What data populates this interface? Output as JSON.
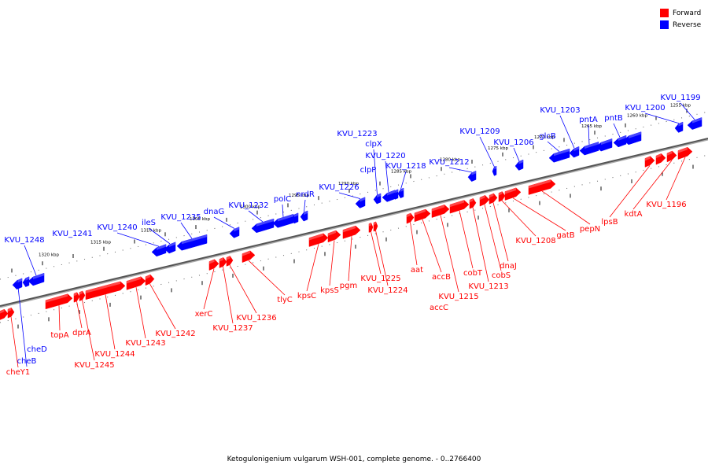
{
  "legend": {
    "forward_label": "Forward",
    "reverse_label": "Reverse",
    "forward_color": "#ff0000",
    "reverse_color": "#0000ff"
  },
  "caption": "Ketogulonigenium vulgarum WSH-001, complete genome. - 0..2766400",
  "axis": {
    "color": "#888888",
    "ticks": [
      {
        "label": "1255 kbp",
        "bp": 1255000
      },
      {
        "label": "1260 kbp",
        "bp": 1260000
      },
      {
        "label": "1265 kbp",
        "bp": 1265000
      },
      {
        "label": "1270 kbp",
        "bp": 1270000
      },
      {
        "label": "1275 kbp",
        "bp": 1275000
      },
      {
        "label": "1280 kbp",
        "bp": 1280000
      },
      {
        "label": "1285 kbp",
        "bp": 1285000
      },
      {
        "label": "1290 kbp",
        "bp": 1290000
      },
      {
        "label": "1295 kbp",
        "bp": 1295000
      },
      {
        "label": "1300 kbp",
        "bp": 1300000
      },
      {
        "label": "1305 kbp",
        "bp": 1305000
      },
      {
        "label": "1310 kbp",
        "bp": 1310000
      },
      {
        "label": "1315 kbp",
        "bp": 1315000
      },
      {
        "label": "1320 kbp",
        "bp": 1320000
      }
    ]
  },
  "genes": [
    {
      "name": "KVU_1199",
      "strand": "reverse"
    },
    {
      "name": "KVU_1200",
      "strand": "reverse"
    },
    {
      "name": "pntB",
      "strand": "reverse"
    },
    {
      "name": "pntA",
      "strand": "reverse"
    },
    {
      "name": "KVU_1203",
      "strand": "reverse"
    },
    {
      "name": "glcB",
      "strand": "reverse"
    },
    {
      "name": "KVU_1206",
      "strand": "reverse"
    },
    {
      "name": "KVU_1209",
      "strand": "reverse"
    },
    {
      "name": "KVU_1212",
      "strand": "reverse"
    },
    {
      "name": "KVU_1218",
      "strand": "reverse"
    },
    {
      "name": "KVU_1220",
      "strand": "reverse"
    },
    {
      "name": "clpX",
      "strand": "reverse"
    },
    {
      "name": "KVU_1223",
      "strand": "reverse"
    },
    {
      "name": "clpP",
      "strand": "reverse"
    },
    {
      "name": "KVU_1226",
      "strand": "reverse"
    },
    {
      "name": "nrdR",
      "strand": "reverse"
    },
    {
      "name": "polC",
      "strand": "reverse"
    },
    {
      "name": "KVU_1232",
      "strand": "reverse"
    },
    {
      "name": "dnaG",
      "strand": "reverse"
    },
    {
      "name": "KVU_1235",
      "strand": "reverse"
    },
    {
      "name": "ileS",
      "strand": "reverse"
    },
    {
      "name": "KVU_1240",
      "strand": "reverse"
    },
    {
      "name": "KVU_1241",
      "strand": "reverse"
    },
    {
      "name": "KVU_1248",
      "strand": "reverse"
    },
    {
      "name": "cheD",
      "strand": "reverse"
    },
    {
      "name": "cheB",
      "strand": "reverse"
    },
    {
      "name": "KVU_1196",
      "strand": "forward"
    },
    {
      "name": "kdtA",
      "strand": "forward"
    },
    {
      "name": "lpsB",
      "strand": "forward"
    },
    {
      "name": "pepN",
      "strand": "forward"
    },
    {
      "name": "gatB",
      "strand": "forward"
    },
    {
      "name": "KVU_1208",
      "strand": "forward"
    },
    {
      "name": "dnaJ",
      "strand": "forward"
    },
    {
      "name": "cobS",
      "strand": "forward"
    },
    {
      "name": "KVU_1213",
      "strand": "forward"
    },
    {
      "name": "cobT",
      "strand": "forward"
    },
    {
      "name": "KVU_1215",
      "strand": "forward"
    },
    {
      "name": "accB",
      "strand": "forward"
    },
    {
      "name": "accC",
      "strand": "forward"
    },
    {
      "name": "aat",
      "strand": "forward"
    },
    {
      "name": "KVU_1224",
      "strand": "forward"
    },
    {
      "name": "KVU_1225",
      "strand": "forward"
    },
    {
      "name": "pgm",
      "strand": "forward"
    },
    {
      "name": "kpsS",
      "strand": "forward"
    },
    {
      "name": "kpsC",
      "strand": "forward"
    },
    {
      "name": "tlyC",
      "strand": "forward"
    },
    {
      "name": "KVU_1236",
      "strand": "forward"
    },
    {
      "name": "KVU_1237",
      "strand": "forward"
    },
    {
      "name": "xerC",
      "strand": "forward"
    },
    {
      "name": "KVU_1242",
      "strand": "forward"
    },
    {
      "name": "KVU_1243",
      "strand": "forward"
    },
    {
      "name": "KVU_1244",
      "strand": "forward"
    },
    {
      "name": "KVU_1245",
      "strand": "forward"
    },
    {
      "name": "dprA",
      "strand": "forward"
    },
    {
      "name": "topA",
      "strand": "forward"
    },
    {
      "name": "cheY1",
      "strand": "forward"
    }
  ]
}
